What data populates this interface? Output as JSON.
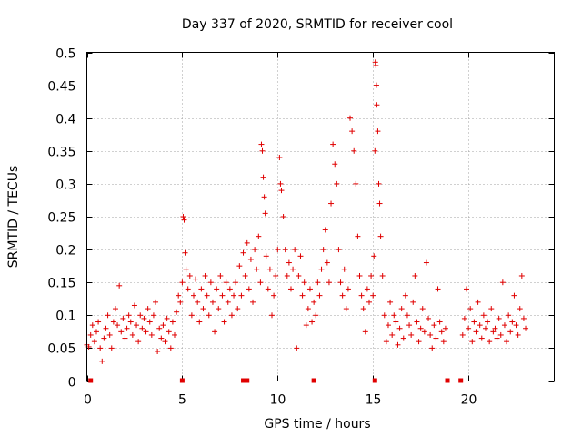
{
  "chart_data": {
    "type": "scatter",
    "title": "Day 337 of 2020, SRMTID for receiver cool",
    "xlabel": "GPS time / hours",
    "ylabel": "SRMTID / TECUs",
    "xlim": [
      0,
      24.5
    ],
    "ylim": [
      0,
      0.5
    ],
    "x_ticks": [
      0,
      5,
      10,
      15,
      20
    ],
    "x_tick_labels": [
      "0",
      "5",
      "10",
      "15",
      "20"
    ],
    "y_ticks": [
      0,
      0.05,
      0.1,
      0.15,
      0.2,
      0.25,
      0.3,
      0.35,
      0.4,
      0.45,
      0.5
    ],
    "y_tick_labels": [
      "0",
      "0.05",
      "0.1",
      "0.15",
      "0.2",
      "0.25",
      "0.3",
      "0.35",
      "0.4",
      "0.45",
      "0.5"
    ],
    "grid": true,
    "marker": "+",
    "color": "#e00000",
    "series": [
      {
        "name": "SRMTID",
        "points": [
          [
            0.0,
            0.055
          ],
          [
            0.1,
            0.052
          ],
          [
            0.2,
            0.07
          ],
          [
            0.3,
            0.085
          ],
          [
            0.4,
            0.06
          ],
          [
            0.5,
            0.075
          ],
          [
            0.6,
            0.09
          ],
          [
            0.7,
            0.05
          ],
          [
            0.8,
            0.03
          ],
          [
            0.9,
            0.065
          ],
          [
            1.0,
            0.08
          ],
          [
            1.1,
            0.1
          ],
          [
            1.2,
            0.07
          ],
          [
            1.3,
            0.05
          ],
          [
            1.4,
            0.09
          ],
          [
            1.5,
            0.11
          ],
          [
            1.6,
            0.085
          ],
          [
            1.7,
            0.145
          ],
          [
            1.8,
            0.075
          ],
          [
            1.9,
            0.095
          ],
          [
            2.0,
            0.065
          ],
          [
            2.1,
            0.08
          ],
          [
            2.2,
            0.1
          ],
          [
            2.3,
            0.09
          ],
          [
            2.4,
            0.07
          ],
          [
            2.5,
            0.115
          ],
          [
            2.6,
            0.085
          ],
          [
            2.7,
            0.06
          ],
          [
            2.8,
            0.1
          ],
          [
            2.9,
            0.08
          ],
          [
            3.0,
            0.095
          ],
          [
            3.1,
            0.075
          ],
          [
            3.2,
            0.11
          ],
          [
            3.3,
            0.09
          ],
          [
            3.4,
            0.07
          ],
          [
            3.5,
            0.1
          ],
          [
            3.6,
            0.12
          ],
          [
            3.7,
            0.045
          ],
          [
            3.8,
            0.08
          ],
          [
            3.9,
            0.065
          ],
          [
            4.0,
            0.085
          ],
          [
            4.1,
            0.06
          ],
          [
            4.2,
            0.095
          ],
          [
            4.3,
            0.075
          ],
          [
            4.4,
            0.05
          ],
          [
            4.5,
            0.09
          ],
          [
            4.6,
            0.07
          ],
          [
            4.7,
            0.105
          ],
          [
            4.8,
            0.13
          ],
          [
            4.9,
            0.12
          ],
          [
            5.0,
            0.15
          ],
          [
            5.05,
            0.25
          ],
          [
            5.1,
            0.245
          ],
          [
            5.15,
            0.195
          ],
          [
            5.2,
            0.17
          ],
          [
            5.3,
            0.14
          ],
          [
            5.4,
            0.16
          ],
          [
            5.5,
            0.1
          ],
          [
            5.6,
            0.13
          ],
          [
            5.7,
            0.155
          ],
          [
            5.8,
            0.12
          ],
          [
            5.9,
            0.09
          ],
          [
            6.0,
            0.14
          ],
          [
            6.1,
            0.11
          ],
          [
            6.2,
            0.16
          ],
          [
            6.3,
            0.13
          ],
          [
            6.4,
            0.1
          ],
          [
            6.5,
            0.15
          ],
          [
            6.6,
            0.12
          ],
          [
            6.7,
            0.075
          ],
          [
            6.8,
            0.14
          ],
          [
            6.9,
            0.11
          ],
          [
            7.0,
            0.16
          ],
          [
            7.1,
            0.13
          ],
          [
            7.2,
            0.09
          ],
          [
            7.3,
            0.15
          ],
          [
            7.4,
            0.12
          ],
          [
            7.5,
            0.14
          ],
          [
            7.6,
            0.1
          ],
          [
            7.7,
            0.13
          ],
          [
            7.8,
            0.15
          ],
          [
            7.9,
            0.11
          ],
          [
            8.0,
            0.175
          ],
          [
            8.1,
            0.13
          ],
          [
            8.2,
            0.195
          ],
          [
            8.3,
            0.16
          ],
          [
            8.4,
            0.21
          ],
          [
            8.5,
            0.14
          ],
          [
            8.6,
            0.185
          ],
          [
            8.7,
            0.12
          ],
          [
            8.8,
            0.2
          ],
          [
            8.9,
            0.17
          ],
          [
            9.0,
            0.22
          ],
          [
            9.1,
            0.15
          ],
          [
            9.15,
            0.36
          ],
          [
            9.2,
            0.35
          ],
          [
            9.25,
            0.31
          ],
          [
            9.3,
            0.28
          ],
          [
            9.35,
            0.255
          ],
          [
            9.4,
            0.19
          ],
          [
            9.5,
            0.14
          ],
          [
            9.6,
            0.17
          ],
          [
            9.7,
            0.1
          ],
          [
            9.8,
            0.13
          ],
          [
            9.9,
            0.16
          ],
          [
            10.0,
            0.2
          ],
          [
            10.1,
            0.34
          ],
          [
            10.15,
            0.3
          ],
          [
            10.2,
            0.29
          ],
          [
            10.3,
            0.25
          ],
          [
            10.4,
            0.2
          ],
          [
            10.5,
            0.16
          ],
          [
            10.6,
            0.18
          ],
          [
            10.7,
            0.14
          ],
          [
            10.8,
            0.17
          ],
          [
            10.9,
            0.2
          ],
          [
            11.0,
            0.05
          ],
          [
            11.1,
            0.16
          ],
          [
            11.2,
            0.19
          ],
          [
            11.3,
            0.13
          ],
          [
            11.4,
            0.15
          ],
          [
            11.5,
            0.085
          ],
          [
            11.6,
            0.11
          ],
          [
            11.7,
            0.14
          ],
          [
            11.8,
            0.09
          ],
          [
            11.9,
            0.12
          ],
          [
            12.0,
            0.1
          ],
          [
            12.1,
            0.15
          ],
          [
            12.2,
            0.13
          ],
          [
            12.3,
            0.17
          ],
          [
            12.4,
            0.2
          ],
          [
            12.5,
            0.23
          ],
          [
            12.6,
            0.18
          ],
          [
            12.7,
            0.15
          ],
          [
            12.8,
            0.27
          ],
          [
            12.9,
            0.36
          ],
          [
            13.0,
            0.33
          ],
          [
            13.1,
            0.3
          ],
          [
            13.2,
            0.2
          ],
          [
            13.3,
            0.15
          ],
          [
            13.4,
            0.13
          ],
          [
            13.5,
            0.17
          ],
          [
            13.6,
            0.11
          ],
          [
            13.7,
            0.14
          ],
          [
            13.8,
            0.4
          ],
          [
            13.9,
            0.38
          ],
          [
            14.0,
            0.35
          ],
          [
            14.1,
            0.3
          ],
          [
            14.2,
            0.22
          ],
          [
            14.3,
            0.16
          ],
          [
            14.4,
            0.13
          ],
          [
            14.5,
            0.11
          ],
          [
            14.6,
            0.075
          ],
          [
            14.7,
            0.14
          ],
          [
            14.8,
            0.12
          ],
          [
            14.9,
            0.16
          ],
          [
            15.0,
            0.13
          ],
          [
            15.05,
            0.19
          ],
          [
            15.1,
            0.35
          ],
          [
            15.12,
            0.485
          ],
          [
            15.15,
            0.48
          ],
          [
            15.18,
            0.45
          ],
          [
            15.2,
            0.42
          ],
          [
            15.25,
            0.38
          ],
          [
            15.3,
            0.3
          ],
          [
            15.35,
            0.27
          ],
          [
            15.4,
            0.22
          ],
          [
            15.5,
            0.16
          ],
          [
            15.6,
            0.1
          ],
          [
            15.7,
            0.06
          ],
          [
            15.8,
            0.085
          ],
          [
            15.9,
            0.12
          ],
          [
            16.0,
            0.07
          ],
          [
            16.1,
            0.1
          ],
          [
            16.2,
            0.09
          ],
          [
            16.3,
            0.055
          ],
          [
            16.4,
            0.08
          ],
          [
            16.5,
            0.11
          ],
          [
            16.6,
            0.065
          ],
          [
            16.7,
            0.13
          ],
          [
            16.8,
            0.1
          ],
          [
            16.9,
            0.085
          ],
          [
            17.0,
            0.07
          ],
          [
            17.1,
            0.12
          ],
          [
            17.2,
            0.16
          ],
          [
            17.3,
            0.09
          ],
          [
            17.4,
            0.06
          ],
          [
            17.5,
            0.08
          ],
          [
            17.6,
            0.11
          ],
          [
            17.7,
            0.075
          ],
          [
            17.8,
            0.18
          ],
          [
            17.9,
            0.095
          ],
          [
            18.0,
            0.07
          ],
          [
            18.1,
            0.05
          ],
          [
            18.2,
            0.085
          ],
          [
            18.3,
            0.065
          ],
          [
            18.4,
            0.14
          ],
          [
            18.5,
            0.09
          ],
          [
            18.6,
            0.075
          ],
          [
            18.7,
            0.06
          ],
          [
            18.8,
            0.08
          ],
          [
            19.7,
            0.07
          ],
          [
            19.8,
            0.095
          ],
          [
            19.9,
            0.14
          ],
          [
            20.0,
            0.08
          ],
          [
            20.1,
            0.11
          ],
          [
            20.2,
            0.06
          ],
          [
            20.3,
            0.09
          ],
          [
            20.4,
            0.075
          ],
          [
            20.5,
            0.12
          ],
          [
            20.6,
            0.085
          ],
          [
            20.7,
            0.065
          ],
          [
            20.8,
            0.1
          ],
          [
            20.9,
            0.08
          ],
          [
            21.0,
            0.09
          ],
          [
            21.1,
            0.06
          ],
          [
            21.2,
            0.11
          ],
          [
            21.3,
            0.075
          ],
          [
            21.4,
            0.08
          ],
          [
            21.5,
            0.065
          ],
          [
            21.6,
            0.095
          ],
          [
            21.7,
            0.07
          ],
          [
            21.8,
            0.15
          ],
          [
            21.9,
            0.085
          ],
          [
            22.0,
            0.06
          ],
          [
            22.1,
            0.1
          ],
          [
            22.2,
            0.075
          ],
          [
            22.3,
            0.09
          ],
          [
            22.4,
            0.13
          ],
          [
            22.5,
            0.085
          ],
          [
            22.6,
            0.07
          ],
          [
            22.7,
            0.11
          ],
          [
            22.8,
            0.16
          ],
          [
            22.9,
            0.095
          ],
          [
            23.0,
            0.08
          ]
        ]
      }
    ],
    "data_gaps_hours": [
      0.2,
      5.0,
      8.2,
      8.4,
      11.9,
      15.1,
      18.9,
      19.6
    ]
  }
}
